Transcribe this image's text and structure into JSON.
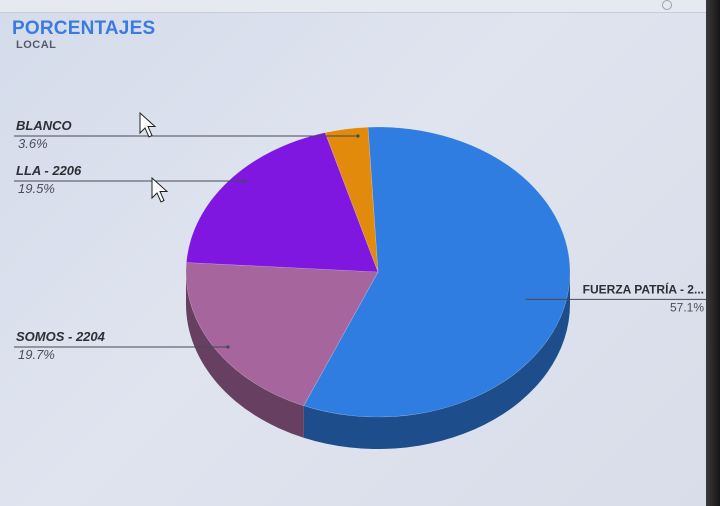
{
  "header": {
    "title": "PORCENTAJES",
    "subtitle": "LOCAL"
  },
  "chart_data": {
    "type": "pie",
    "title": "PORCENTAJES",
    "subtitle": "LOCAL",
    "slices": [
      {
        "label": "FUERZA PATRÍA - 2...",
        "value": 57.1,
        "percent_label": "57.1%",
        "color": "#2f7de0"
      },
      {
        "label": "SOMOS - 2204",
        "value": 19.7,
        "percent_label": "19.7%",
        "color": "#a6659c"
      },
      {
        "label": "LLA - 2206",
        "value": 19.5,
        "percent_label": "19.5%",
        "color": "#7f17e0"
      },
      {
        "label": "BLANCO",
        "value": 3.6,
        "percent_label": "3.6%",
        "color": "#e18a0c"
      }
    ],
    "legend": "none",
    "style": "3d"
  }
}
